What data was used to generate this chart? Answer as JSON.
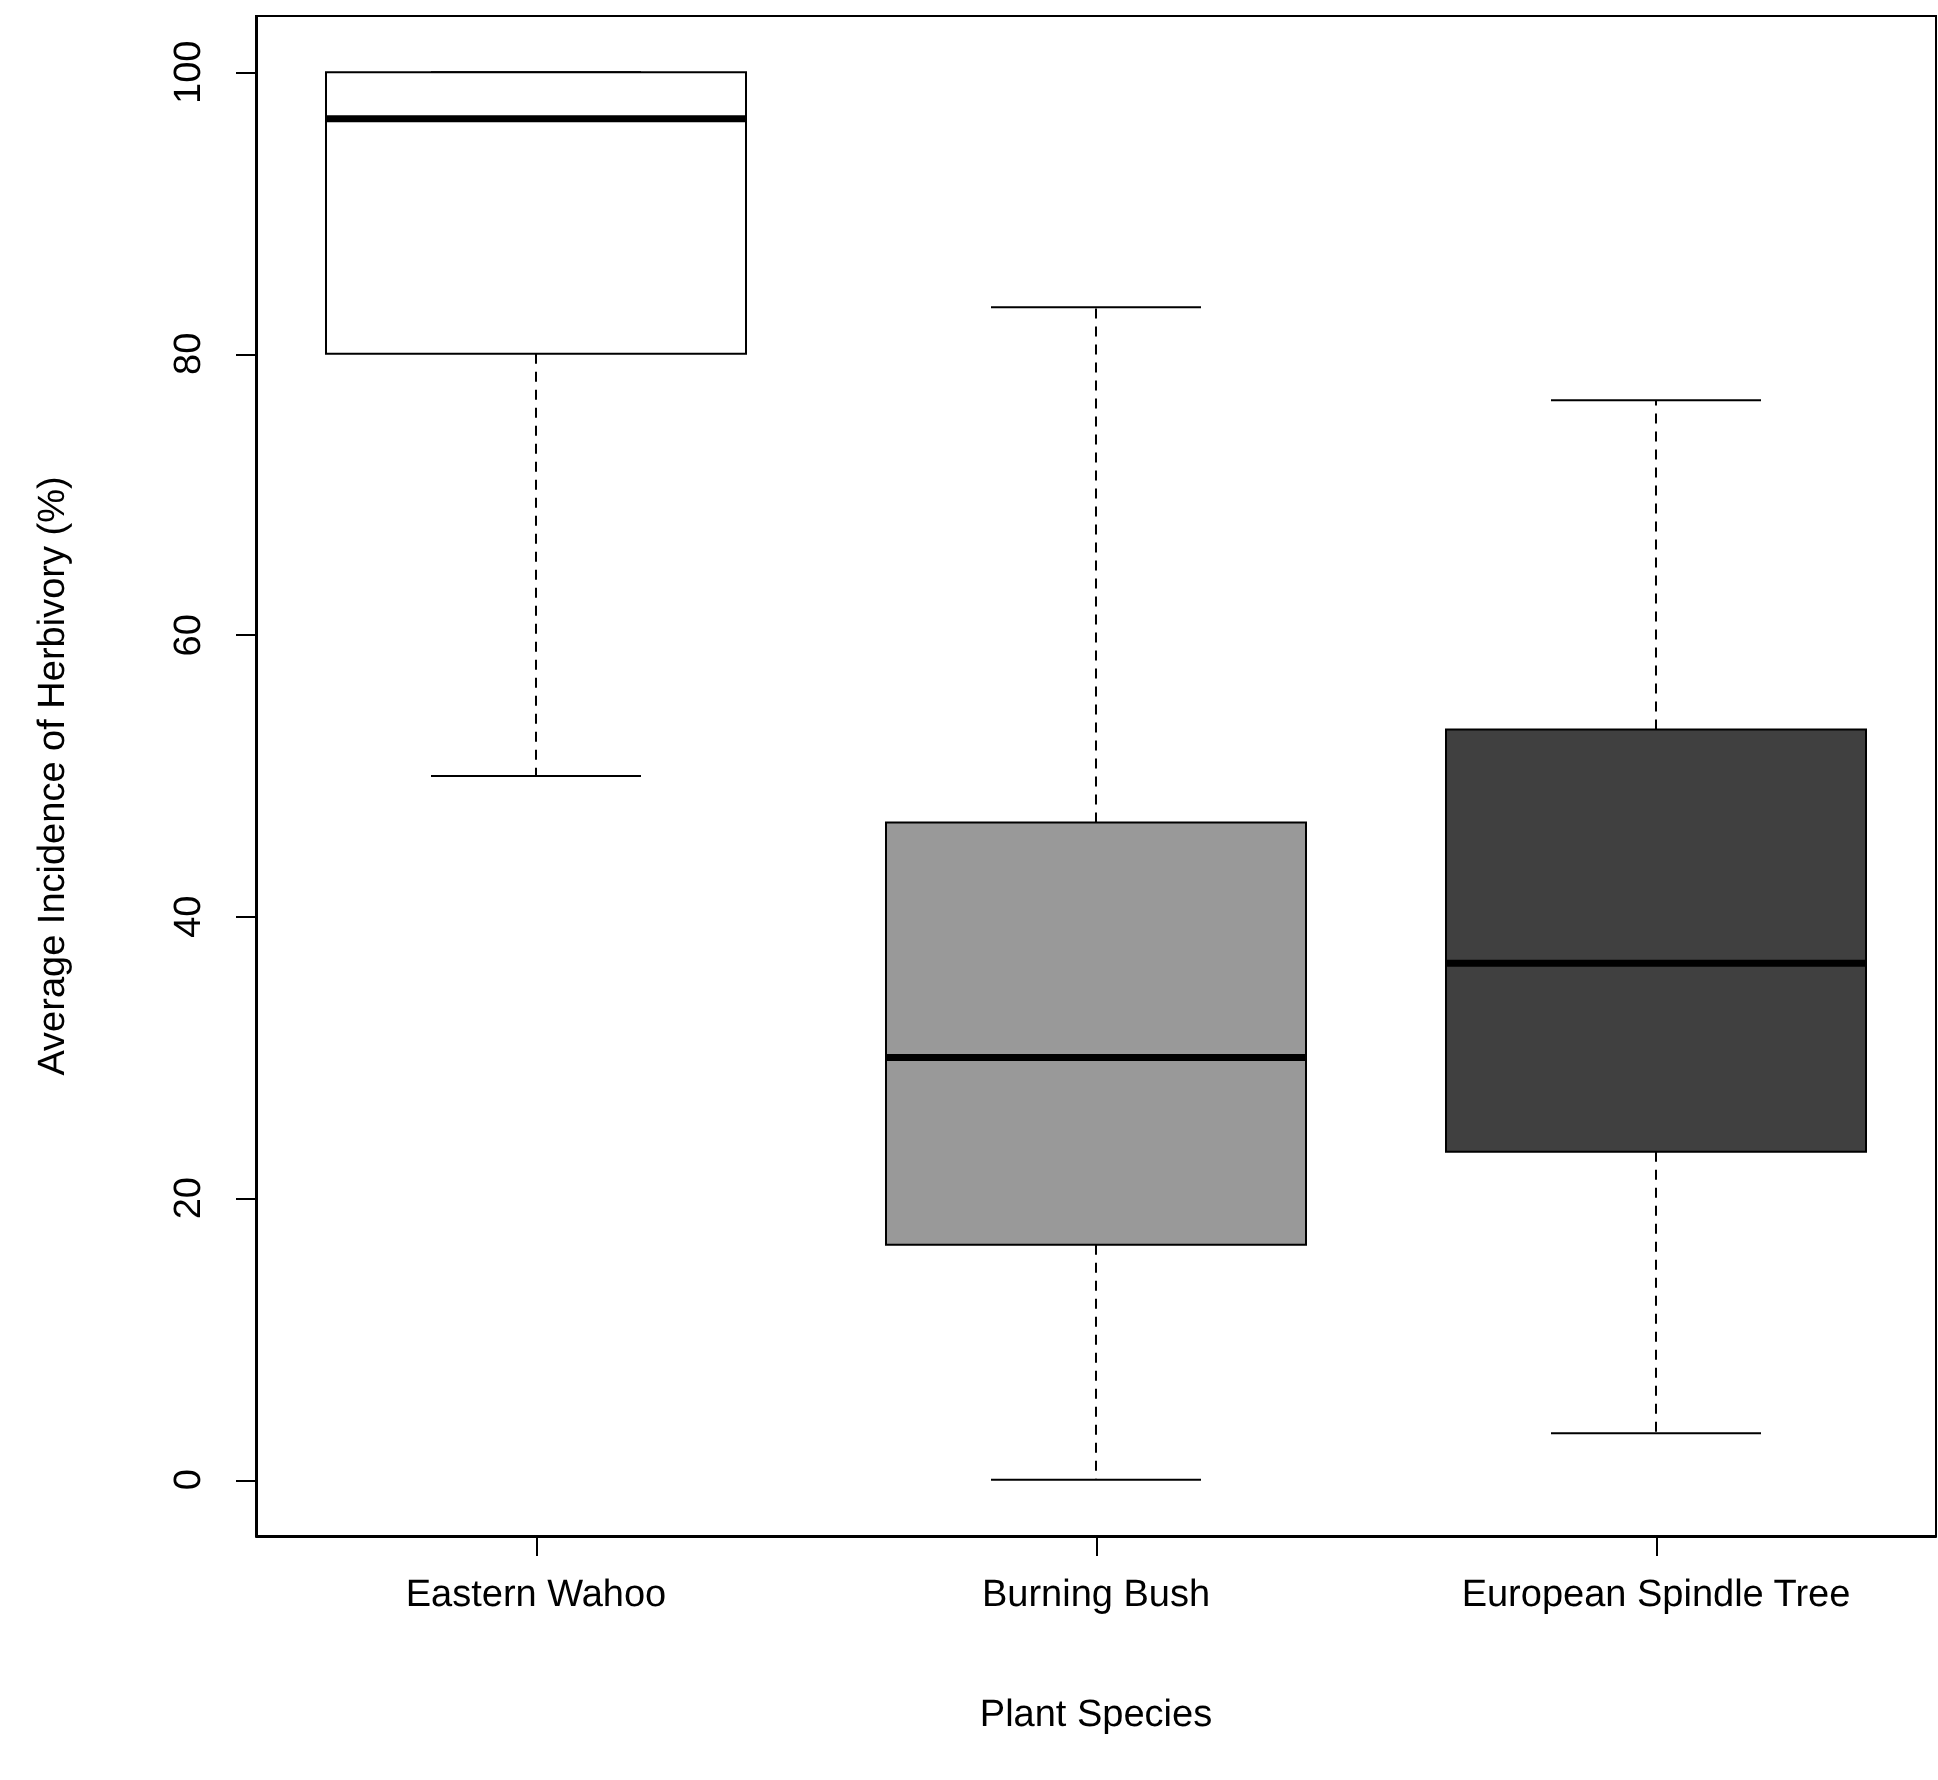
{
  "chart_data": {
    "type": "box",
    "xlabel": "Plant Species",
    "ylabel": "Average Incidence of Herbivory (%)",
    "categories": [
      "Eastern Wahoo",
      "Burning Bush",
      "European Spindle Tree"
    ],
    "colors": [
      "#ffffff",
      "#999999",
      "#404040"
    ],
    "boxes": [
      {
        "low": 50,
        "q1": 80,
        "median": 96.7,
        "q3": 100,
        "high": 100
      },
      {
        "low": 0,
        "q1": 16.7,
        "median": 30,
        "q3": 46.7,
        "high": 83.3
      },
      {
        "low": 3.3,
        "q1": 23.3,
        "median": 36.7,
        "q3": 53.3,
        "high": 76.7
      }
    ],
    "ylim": [
      -4,
      104
    ],
    "yticks": [
      0,
      20,
      40,
      60,
      80,
      100
    ],
    "grid": false
  }
}
